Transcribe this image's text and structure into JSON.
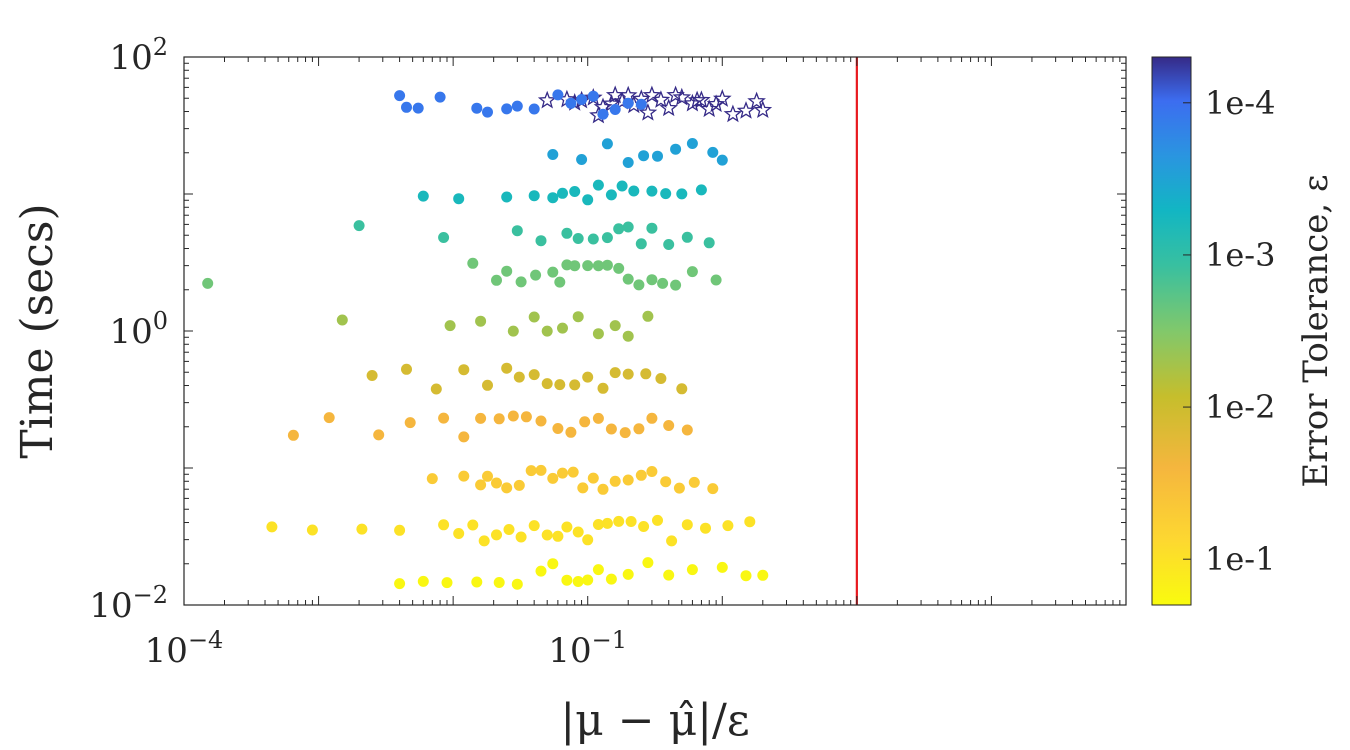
{
  "chart_data": {
    "type": "scatter",
    "title": "",
    "xlabel": "|μ − μ̂|/ε",
    "ylabel": "Time (secs)",
    "x_scale": "log",
    "y_scale": "log",
    "xlim": [
      0.0001,
      1000
    ],
    "ylim": [
      0.01,
      100
    ],
    "x_ticks": [
      {
        "value": 0.0001,
        "base": "10",
        "exp": "−4"
      },
      {
        "value": 0.1,
        "base": "10",
        "exp": "−1"
      }
    ],
    "y_ticks": [
      {
        "value": 0.01,
        "base": "10",
        "exp": "−2"
      },
      {
        "value": 1,
        "base": "10",
        "exp": "0"
      },
      {
        "value": 100,
        "base": "10",
        "exp": "2"
      }
    ],
    "reference_line": {
      "x": 10,
      "color": "#e8191f"
    },
    "colorbar": {
      "label": "Error Tolerance, ε",
      "ticks": [
        {
          "value": 0.0001,
          "label": "1e-4"
        },
        {
          "value": 0.001,
          "label": "1e-3"
        },
        {
          "value": 0.01,
          "label": "1e-2"
        },
        {
          "value": 0.1,
          "label": "1e-1"
        }
      ],
      "range": [
        0.2,
        5e-05
      ]
    },
    "grid": false,
    "groups": [
      {
        "tolerance": 5e-05,
        "y": 45,
        "marker": "star",
        "x": [
          0.12,
          0.3,
          0.8,
          1.5,
          0.07,
          0.15,
          0.4,
          0.25,
          1.0,
          0.6,
          0.09,
          0.18,
          0.5,
          2.0,
          0.13,
          0.35,
          0.7,
          1.2,
          0.05,
          0.22,
          0.45,
          0.11,
          0.28,
          0.9,
          0.16,
          0.65,
          1.8,
          0.08,
          0.2
        ]
      },
      {
        "tolerance": 0.00012,
        "y": 45,
        "marker": "circle",
        "x": [
          0.004,
          0.0045,
          0.0055,
          0.008,
          0.015,
          0.018,
          0.025,
          0.03,
          0.04,
          0.06,
          0.075,
          0.09,
          0.11,
          0.13,
          0.16,
          0.2,
          0.25
        ]
      },
      {
        "tolerance": 0.0003,
        "y": 20,
        "marker": "circle",
        "x": [
          0.055,
          0.09,
          0.14,
          0.2,
          0.26,
          0.33,
          0.45,
          0.6,
          0.85,
          1.0
        ]
      },
      {
        "tolerance": 0.0006,
        "y": 10,
        "marker": "circle",
        "x": [
          0.006,
          0.011,
          0.025,
          0.04,
          0.055,
          0.065,
          0.08,
          0.1,
          0.12,
          0.15,
          0.18,
          0.22,
          0.3,
          0.38,
          0.5,
          0.7
        ]
      },
      {
        "tolerance": 0.0012,
        "y": 5,
        "marker": "circle",
        "x": [
          0.002,
          0.0085,
          0.03,
          0.045,
          0.07,
          0.085,
          0.11,
          0.14,
          0.17,
          0.2,
          0.25,
          0.3,
          0.4,
          0.55,
          0.8
        ]
      },
      {
        "tolerance": 0.0025,
        "y": 2.6,
        "marker": "circle",
        "x": [
          0.00015,
          0.014,
          0.021,
          0.025,
          0.032,
          0.041,
          0.055,
          0.062,
          0.07,
          0.08,
          0.1,
          0.12,
          0.14,
          0.17,
          0.2,
          0.24,
          0.3,
          0.36,
          0.45,
          0.6,
          0.9
        ]
      },
      {
        "tolerance": 0.005,
        "y": 1.1,
        "marker": "circle",
        "x": [
          0.0015,
          0.0095,
          0.016,
          0.028,
          0.04,
          0.05,
          0.065,
          0.085,
          0.12,
          0.16,
          0.2,
          0.28
        ]
      },
      {
        "tolerance": 0.012,
        "y": 0.45,
        "marker": "circle",
        "x": [
          0.0025,
          0.0045,
          0.0075,
          0.012,
          0.018,
          0.025,
          0.031,
          0.04,
          0.05,
          0.062,
          0.08,
          0.1,
          0.13,
          0.16,
          0.2,
          0.27,
          0.35,
          0.5
        ]
      },
      {
        "tolerance": 0.025,
        "y": 0.2,
        "marker": "circle",
        "x": [
          0.00065,
          0.0012,
          0.0028,
          0.0048,
          0.0085,
          0.012,
          0.016,
          0.022,
          0.028,
          0.035,
          0.045,
          0.06,
          0.075,
          0.095,
          0.12,
          0.15,
          0.19,
          0.24,
          0.3,
          0.4,
          0.55
        ]
      },
      {
        "tolerance": 0.05,
        "y": 0.08,
        "marker": "circle",
        "x": [
          0.007,
          0.012,
          0.016,
          0.018,
          0.021,
          0.025,
          0.031,
          0.038,
          0.045,
          0.055,
          0.065,
          0.078,
          0.092,
          0.11,
          0.13,
          0.16,
          0.2,
          0.25,
          0.3,
          0.38,
          0.48,
          0.62,
          0.85
        ]
      },
      {
        "tolerance": 0.1,
        "y": 0.035,
        "marker": "circle",
        "x": [
          0.00045,
          0.0009,
          0.0021,
          0.004,
          0.0085,
          0.011,
          0.014,
          0.017,
          0.021,
          0.026,
          0.032,
          0.04,
          0.05,
          0.06,
          0.07,
          0.085,
          0.1,
          0.12,
          0.14,
          0.17,
          0.21,
          0.26,
          0.33,
          0.42,
          0.55,
          0.75,
          1.1,
          1.6
        ]
      },
      {
        "tolerance": 0.18,
        "y": 0.017,
        "marker": "circle",
        "x": [
          0.004,
          0.006,
          0.009,
          0.015,
          0.022,
          0.03,
          0.045,
          0.055,
          0.07,
          0.085,
          0.1,
          0.12,
          0.15,
          0.2,
          0.28,
          0.4,
          0.6,
          1.0,
          1.5,
          2.0
        ]
      }
    ]
  }
}
